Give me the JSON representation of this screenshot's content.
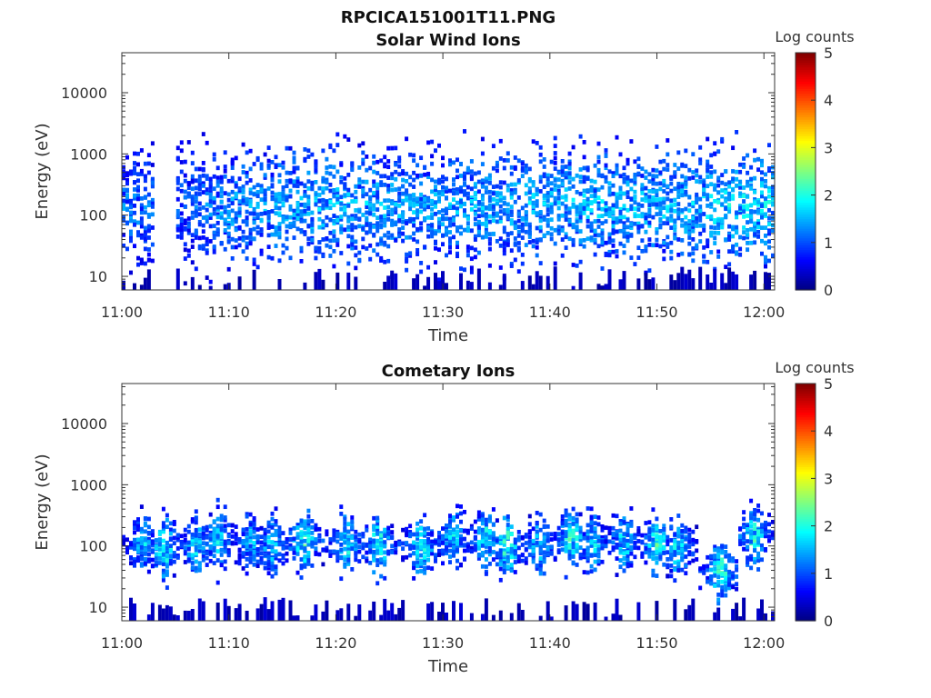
{
  "figure_title": "RPCICA151001T11.PNG",
  "chart_data": [
    {
      "type": "heatmap",
      "title": "Solar Wind Ions",
      "xlabel": "Time",
      "ylabel": "Energy (eV)",
      "x_range": [
        "11:00",
        "12:01"
      ],
      "x_ticks": [
        "11:00",
        "11:10",
        "11:20",
        "11:30",
        "11:40",
        "11:50",
        "12:00"
      ],
      "y_scale": "log",
      "y_range": [
        6,
        45000
      ],
      "y_ticks": [
        "10",
        "100",
        "1000",
        "10000"
      ],
      "y_tick_values": [
        10,
        100,
        1000,
        10000
      ],
      "colorbar": {
        "label": "Log counts",
        "range": [
          0,
          5
        ],
        "ticks": [
          "0",
          "1",
          "2",
          "3",
          "4",
          "5"
        ],
        "colormap": "jet"
      },
      "data_gap": [
        "11:03",
        "11:05"
      ],
      "profile": {
        "times": [
          "11:00",
          "11:05",
          "11:10",
          "11:20",
          "11:30",
          "11:40",
          "11:50",
          "12:00"
        ],
        "typical_energy_eV": [
          120,
          150,
          130,
          140,
          130,
          150,
          140,
          150
        ],
        "peak_log_counts": [
          1.5,
          1.2,
          1.6,
          1.8,
          1.7,
          1.8,
          1.8,
          2.0
        ]
      }
    },
    {
      "type": "heatmap",
      "title": "Cometary Ions",
      "xlabel": "Time",
      "ylabel": "Energy (eV)",
      "x_range": [
        "11:00",
        "12:01"
      ],
      "x_ticks": [
        "11:00",
        "11:10",
        "11:20",
        "11:30",
        "11:40",
        "11:50",
        "12:00"
      ],
      "y_scale": "log",
      "y_range": [
        6,
        45000
      ],
      "y_ticks": [
        "10",
        "100",
        "1000",
        "10000"
      ],
      "y_tick_values": [
        10,
        100,
        1000,
        10000
      ],
      "colorbar": {
        "label": "Log counts",
        "range": [
          0,
          5
        ],
        "ticks": [
          "0",
          "1",
          "2",
          "3",
          "4",
          "5"
        ],
        "colormap": "jet"
      },
      "bursts": [
        {
          "time": "11:02",
          "peak_energy_eV": 100,
          "peak_log_counts": 1.9
        },
        {
          "time": "11:04",
          "peak_energy_eV": 90,
          "peak_log_counts": 2.3
        },
        {
          "time": "11:07",
          "peak_energy_eV": 100,
          "peak_log_counts": 2.1
        },
        {
          "time": "11:09",
          "peak_energy_eV": 130,
          "peak_log_counts": 2.0
        },
        {
          "time": "11:12",
          "peak_energy_eV": 110,
          "peak_log_counts": 1.8
        },
        {
          "time": "11:14",
          "peak_energy_eV": 100,
          "peak_log_counts": 1.9
        },
        {
          "time": "11:17",
          "peak_energy_eV": 120,
          "peak_log_counts": 2.4
        },
        {
          "time": "11:21",
          "peak_energy_eV": 110,
          "peak_log_counts": 2.2
        },
        {
          "time": "11:24",
          "peak_energy_eV": 100,
          "peak_log_counts": 2.4
        },
        {
          "time": "11:28",
          "peak_energy_eV": 100,
          "peak_log_counts": 2.3
        },
        {
          "time": "11:31",
          "peak_energy_eV": 140,
          "peak_log_counts": 2.0
        },
        {
          "time": "11:34",
          "peak_energy_eV": 130,
          "peak_log_counts": 2.2
        },
        {
          "time": "11:36",
          "peak_energy_eV": 100,
          "peak_log_counts": 2.5
        },
        {
          "time": "11:39",
          "peak_energy_eV": 100,
          "peak_log_counts": 2.0
        },
        {
          "time": "11:42",
          "peak_energy_eV": 130,
          "peak_log_counts": 2.3
        },
        {
          "time": "11:44",
          "peak_energy_eV": 110,
          "peak_log_counts": 2.0
        },
        {
          "time": "11:47",
          "peak_energy_eV": 120,
          "peak_log_counts": 2.1
        },
        {
          "time": "11:50",
          "peak_energy_eV": 110,
          "peak_log_counts": 2.4
        },
        {
          "time": "11:52",
          "peak_energy_eV": 90,
          "peak_log_counts": 2.1
        },
        {
          "time": "11:56",
          "peak_energy_eV": 40,
          "peak_log_counts": 2.5
        },
        {
          "time": "11:59",
          "peak_energy_eV": 140,
          "peak_log_counts": 2.3
        }
      ]
    }
  ]
}
